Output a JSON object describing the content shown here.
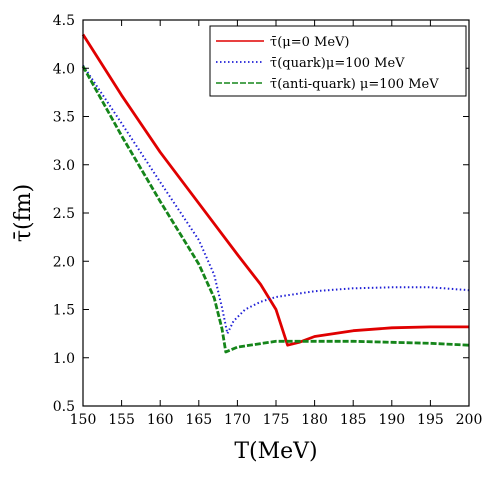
{
  "chart_data": {
    "type": "line",
    "xlabel": "T(MeV)",
    "ylabel": "τ̄(fm)",
    "xlim": [
      150,
      200
    ],
    "ylim": [
      0.5,
      4.5
    ],
    "xticks": [
      150,
      155,
      160,
      165,
      170,
      175,
      180,
      185,
      190,
      195,
      200
    ],
    "yticks": [
      0.5,
      1.0,
      1.5,
      2.0,
      2.5,
      3.0,
      3.5,
      4.0,
      4.5
    ],
    "xtick_labels": [
      "150",
      "155",
      "160",
      "165",
      "170",
      "175",
      "180",
      "185",
      "190",
      "195",
      "200"
    ],
    "ytick_labels": [
      "0.5",
      "1.0",
      "1.5",
      "2.0",
      "2.5",
      "3.0",
      "3.5",
      "4.0",
      "4.5"
    ],
    "legend_position": "top-right",
    "grid": false,
    "series": [
      {
        "name": "τ̄(μ=0 MeV)",
        "color": "#e00000",
        "style": "solid",
        "x": [
          150,
          155,
          160,
          165,
          170,
          173,
          175,
          176.5,
          178,
          180,
          185,
          190,
          195,
          200
        ],
        "y": [
          4.35,
          3.72,
          3.13,
          2.6,
          2.07,
          1.76,
          1.5,
          1.13,
          1.16,
          1.22,
          1.28,
          1.31,
          1.32,
          1.32
        ]
      },
      {
        "name": "τ̄(quark)μ=100 MeV",
        "color": "#1f1fd6",
        "style": "dotted",
        "x": [
          150,
          155,
          160,
          165,
          167,
          168,
          168.7,
          169.5,
          171,
          173,
          175,
          180,
          185,
          190,
          195,
          200
        ],
        "y": [
          4.03,
          3.43,
          2.82,
          2.22,
          1.86,
          1.52,
          1.25,
          1.38,
          1.5,
          1.58,
          1.63,
          1.69,
          1.72,
          1.73,
          1.73,
          1.7
        ]
      },
      {
        "name": "τ̄(anti-quark) μ=100 MeV",
        "color": "#15851a",
        "style": "dashed",
        "x": [
          150,
          155,
          160,
          165,
          167,
          168,
          168.5,
          170,
          175,
          180,
          185,
          190,
          195,
          200
        ],
        "y": [
          4.02,
          3.3,
          2.62,
          1.97,
          1.62,
          1.3,
          1.06,
          1.11,
          1.17,
          1.17,
          1.17,
          1.16,
          1.15,
          1.13
        ]
      }
    ]
  }
}
